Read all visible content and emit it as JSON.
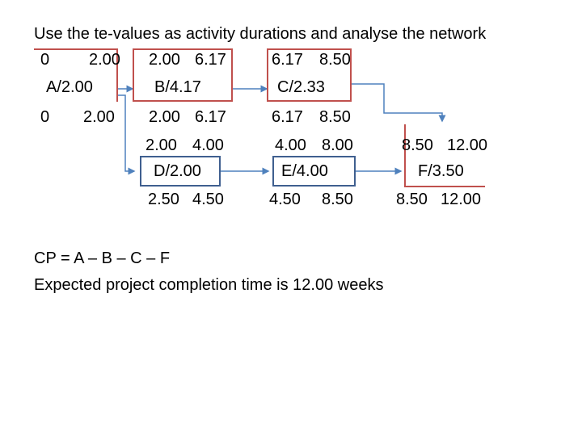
{
  "title": "Use the te-values as activity durations and analyse the network",
  "colors": {
    "critical": "#c0504d",
    "noncritical": "#3f5f8f",
    "arrow": "#4f81bd"
  },
  "activities": [
    {
      "label": "A/2.00",
      "es": "0",
      "ef": "2.00",
      "ls": "0",
      "lf": "2.00",
      "critical": true
    },
    {
      "label": "B/4.17",
      "es": "2.00",
      "ef": "6.17",
      "ls": "2.00",
      "lf": "6.17",
      "critical": true
    },
    {
      "label": "C/2.33",
      "es": "6.17",
      "ef": "8.50",
      "ls": "6.17",
      "lf": "8.50",
      "critical": true
    },
    {
      "label": "D/2.00",
      "es": "2.00",
      "ef": "4.00",
      "ls": "2.50",
      "lf": "4.50",
      "critical": false
    },
    {
      "label": "E/4.00",
      "es": "4.00",
      "ef": "8.00",
      "ls": "4.50",
      "lf": "8.50",
      "critical": false
    },
    {
      "label": "F/3.50",
      "es": "8.50",
      "ef": "12.00",
      "ls": "8.50",
      "lf": "12.00",
      "critical": true
    }
  ],
  "cp_line": "CP = A – B – C – F",
  "completion_line": "Expected project completion time is 12.00 weeks"
}
